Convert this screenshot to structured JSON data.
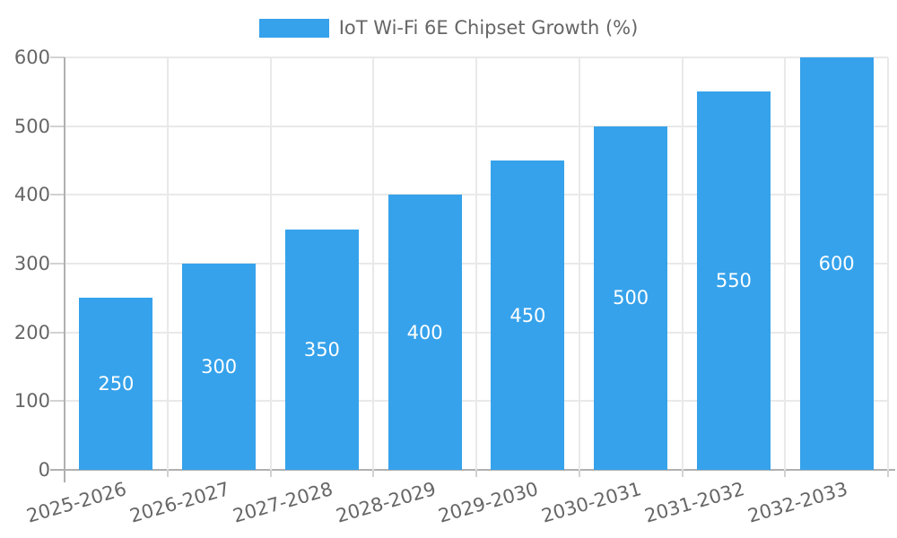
{
  "chart_data": {
    "type": "bar",
    "title": "IoT Wi-Fi 6E Chipset Growth (%)",
    "categories": [
      "2025-2026",
      "2026-2027",
      "2027-2028",
      "2028-2029",
      "2029-2030",
      "2030-2031",
      "2031-2032",
      "2032-2033"
    ],
    "series": [
      {
        "name": "IoT Wi-Fi 6E Chipset Growth (%)",
        "values": [
          250,
          300,
          350,
          400,
          450,
          500,
          550,
          600
        ],
        "color": "#36a2eb"
      }
    ],
    "bar_value_labels": [
      "250",
      "300",
      "350",
      "400",
      "450",
      "500",
      "550",
      "600"
    ],
    "xlabel": "",
    "ylabel": "",
    "ylim": [
      0,
      600
    ],
    "yticks": [
      0,
      100,
      200,
      300,
      400,
      500,
      600
    ],
    "grid": true,
    "legend_position": "top",
    "colors": {
      "value_label": "#ffffff",
      "axis_text": "#666666",
      "gridline": "#e9e9e9",
      "axis_line": "#b0b0b0",
      "tick_mark": "#d2d2d2",
      "background": "#ffffff"
    }
  }
}
